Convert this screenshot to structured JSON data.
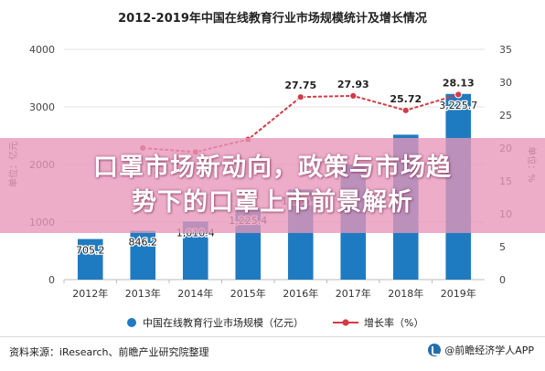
{
  "chart_data": {
    "type": "bar",
    "title": "2012-2019年中国在线教育行业市场规模统计及增长情况",
    "categories": [
      "2012年",
      "2013年",
      "2014年",
      "2015年",
      "2016年",
      "2017年",
      "2018年",
      "2019年"
    ],
    "series": [
      {
        "name": "中国在线教育行业市场规模（亿元）",
        "type": "bar",
        "axis": "left",
        "values": [
          705.2,
          846.2,
          1010.4,
          1225.4,
          1565.4,
          2002.0,
          2517.6,
          3225.7
        ],
        "labels": [
          "705.2",
          "846.2",
          "1,010.4",
          "1,225.4",
          "1,565.4",
          "",
          "",
          "3,225.7"
        ],
        "color": "#1f7bc1"
      },
      {
        "name": "增长率（%）",
        "type": "line",
        "axis": "right",
        "values": [
          null,
          20.0,
          19.4,
          21.3,
          27.75,
          27.93,
          25.72,
          28.13
        ],
        "labels": [
          "",
          "",
          "",
          "",
          "27.75",
          "27.93",
          "25.72",
          "28.13"
        ],
        "color": "#d13b47"
      }
    ],
    "ylabel_left": "单位：亿元",
    "ylabel_right": "单位：%",
    "ylim_left": [
      0,
      4000
    ],
    "yticks_left": [
      "0",
      "1000",
      "2000",
      "3000",
      "4000"
    ],
    "ylim_right": [
      0,
      35
    ],
    "yticks_right": [
      "0",
      "5",
      "10",
      "15",
      "20",
      "25",
      "30",
      "35"
    ],
    "grid": true,
    "legend_position": "bottom"
  },
  "banner": {
    "line1": "口罩市场新动向，政策与市场趋",
    "line2": "势下的口罩上市前景解析"
  },
  "footer": {
    "source": "资料来源：iResearch、前瞻产业研究院整理",
    "brand": "@前瞻经济学人APP"
  }
}
